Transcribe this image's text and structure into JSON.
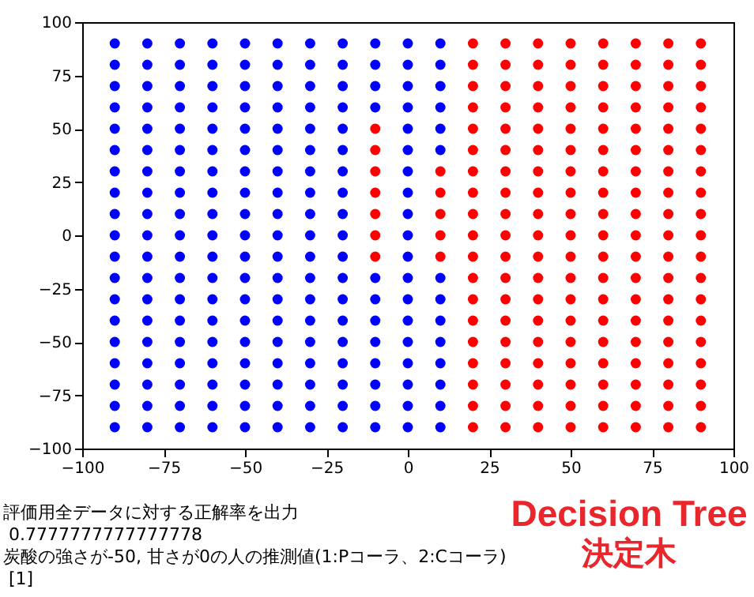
{
  "chart_data": {
    "type": "scatter",
    "xlim": [
      -100,
      100
    ],
    "ylim": [
      -100,
      100
    ],
    "xticks": [
      -100,
      -75,
      -50,
      -25,
      0,
      25,
      50,
      75,
      100
    ],
    "yticks": [
      -100,
      -75,
      -50,
      -25,
      0,
      25,
      50,
      75,
      100
    ],
    "marker": "circle",
    "annotations": [
      "評価用全データに対する正解率を出力",
      " 0.7777777777777778",
      "炭酸の強さが-50, 甘さが0の人の推測値(1:Pコーラ、2:Cコーラ)",
      " [1]",
      "Decision Tree",
      "決定木"
    ],
    "series": [
      {
        "color": "#0000ff",
        "x": [
          -90,
          -90,
          -90,
          -90,
          -90,
          -90,
          -90,
          -90,
          -90,
          -90,
          -90,
          -90,
          -90,
          -90,
          -90,
          -90,
          -90,
          -90,
          -90,
          -80,
          -80,
          -80,
          -80,
          -80,
          -80,
          -80,
          -80,
          -80,
          -80,
          -80,
          -80,
          -80,
          -80,
          -80,
          -80,
          -80,
          -80,
          -80,
          -70,
          -70,
          -70,
          -70,
          -70,
          -70,
          -70,
          -70,
          -70,
          -70,
          -70,
          -70,
          -70,
          -70,
          -70,
          -70,
          -70,
          -70,
          -70,
          -60,
          -60,
          -60,
          -60,
          -60,
          -60,
          -60,
          -60,
          -60,
          -60,
          -60,
          -60,
          -60,
          -60,
          -60,
          -60,
          -60,
          -60,
          -60,
          -50,
          -50,
          -50,
          -50,
          -50,
          -50,
          -50,
          -50,
          -50,
          -50,
          -50,
          -50,
          -50,
          -50,
          -50,
          -50,
          -50,
          -50,
          -50,
          -40,
          -40,
          -40,
          -40,
          -40,
          -40,
          -40,
          -40,
          -40,
          -40,
          -40,
          -40,
          -40,
          -40,
          -40,
          -40,
          -40,
          -40,
          -40,
          -30,
          -30,
          -30,
          -30,
          -30,
          -30,
          -30,
          -30,
          -30,
          -30,
          -30,
          -30,
          -30,
          -30,
          -30,
          -30,
          -30,
          -30,
          -30,
          -20,
          -20,
          -20,
          -20,
          -20,
          -20,
          -20,
          -20,
          -20,
          -20,
          -20,
          -20,
          -20,
          -20,
          -20,
          -20,
          -20,
          -20,
          -20,
          -10,
          -10,
          -10,
          -10,
          -10,
          -10,
          -10,
          -10,
          -10,
          -10,
          -10,
          -10,
          0,
          0,
          0,
          0,
          0,
          0,
          0,
          0,
          0,
          0,
          0,
          0,
          0,
          0,
          0,
          0,
          0,
          0,
          0,
          10,
          10,
          10,
          10,
          10,
          10,
          10,
          10,
          10,
          10,
          10,
          10,
          10,
          10
        ],
        "values": [
          -90,
          -80,
          -70,
          -60,
          -50,
          -40,
          -30,
          -20,
          -10,
          0,
          10,
          20,
          30,
          40,
          50,
          60,
          70,
          80,
          90,
          -90,
          -80,
          -70,
          -60,
          -50,
          -40,
          -30,
          -20,
          -10,
          0,
          10,
          20,
          30,
          40,
          50,
          60,
          70,
          80,
          90,
          -90,
          -80,
          -70,
          -60,
          -50,
          -40,
          -30,
          -20,
          -10,
          0,
          10,
          20,
          30,
          40,
          50,
          60,
          70,
          80,
          90,
          -90,
          -80,
          -70,
          -60,
          -50,
          -40,
          -30,
          -20,
          -10,
          0,
          10,
          20,
          30,
          40,
          50,
          60,
          70,
          80,
          90,
          -90,
          -80,
          -70,
          -60,
          -50,
          -40,
          -30,
          -20,
          -10,
          0,
          10,
          20,
          30,
          40,
          50,
          60,
          70,
          80,
          90,
          -90,
          -80,
          -70,
          -60,
          -50,
          -40,
          -30,
          -20,
          -10,
          0,
          10,
          20,
          30,
          40,
          50,
          60,
          70,
          80,
          90,
          -90,
          -80,
          -70,
          -60,
          -50,
          -40,
          -30,
          -20,
          -10,
          0,
          10,
          20,
          30,
          40,
          50,
          60,
          70,
          80,
          90,
          -90,
          -80,
          -70,
          -60,
          -50,
          -40,
          -30,
          -20,
          -10,
          0,
          10,
          20,
          30,
          40,
          50,
          60,
          70,
          80,
          90,
          -90,
          -80,
          -70,
          -60,
          -50,
          -40,
          -30,
          -20,
          60,
          70,
          80,
          90,
          -90,
          -80,
          -70,
          -60,
          -50,
          -40,
          -30,
          -20,
          -10,
          0,
          10,
          20,
          30,
          40,
          50,
          60,
          70,
          80,
          90,
          -90,
          -80,
          -70,
          -60,
          -50,
          -40,
          -30,
          -20,
          40,
          50,
          60,
          70,
          80,
          90
        ]
      },
      {
        "color": "#ff0000",
        "x": [
          -10,
          -10,
          -10,
          -10,
          -10,
          -10,
          -10,
          10,
          10,
          10,
          10,
          10,
          20,
          20,
          20,
          20,
          20,
          20,
          20,
          20,
          20,
          20,
          20,
          20,
          20,
          20,
          20,
          20,
          20,
          20,
          20,
          30,
          30,
          30,
          30,
          30,
          30,
          30,
          30,
          30,
          30,
          30,
          30,
          30,
          30,
          30,
          30,
          30,
          30,
          30,
          40,
          40,
          40,
          40,
          40,
          40,
          40,
          40,
          40,
          40,
          40,
          40,
          40,
          40,
          40,
          40,
          40,
          40,
          40,
          50,
          50,
          50,
          50,
          50,
          50,
          50,
          50,
          50,
          50,
          50,
          50,
          50,
          50,
          50,
          50,
          50,
          50,
          50,
          60,
          60,
          60,
          60,
          60,
          60,
          60,
          60,
          60,
          60,
          60,
          60,
          60,
          60,
          60,
          60,
          60,
          60,
          60,
          70,
          70,
          70,
          70,
          70,
          70,
          70,
          70,
          70,
          70,
          70,
          70,
          70,
          70,
          70,
          70,
          70,
          70,
          70,
          80,
          80,
          80,
          80,
          80,
          80,
          80,
          80,
          80,
          80,
          80,
          80,
          80,
          80,
          80,
          80,
          80,
          80,
          80,
          90,
          90,
          90,
          90,
          90,
          90,
          90,
          90,
          90,
          90,
          90,
          90,
          90,
          90,
          90,
          90,
          90,
          90,
          90
        ],
        "values": [
          -10,
          0,
          10,
          20,
          30,
          40,
          50,
          -10,
          0,
          10,
          20,
          30,
          -90,
          -80,
          -70,
          -60,
          -50,
          -40,
          -30,
          -20,
          -10,
          0,
          10,
          20,
          30,
          40,
          50,
          60,
          70,
          80,
          90,
          -90,
          -80,
          -70,
          -60,
          -50,
          -40,
          -30,
          -20,
          -10,
          0,
          10,
          20,
          30,
          40,
          50,
          60,
          70,
          80,
          90,
          -90,
          -80,
          -70,
          -60,
          -50,
          -40,
          -30,
          -20,
          -10,
          0,
          10,
          20,
          30,
          40,
          50,
          60,
          70,
          80,
          90,
          -90,
          -80,
          -70,
          -60,
          -50,
          -40,
          -30,
          -20,
          -10,
          0,
          10,
          20,
          30,
          40,
          50,
          60,
          70,
          80,
          90,
          -90,
          -80,
          -70,
          -60,
          -50,
          -40,
          -30,
          -20,
          -10,
          0,
          10,
          20,
          30,
          40,
          50,
          60,
          70,
          80,
          90,
          -90,
          -80,
          -70,
          -60,
          -50,
          -40,
          -30,
          -20,
          -10,
          0,
          10,
          20,
          30,
          40,
          50,
          60,
          70,
          80,
          90,
          -90,
          -80,
          -70,
          -60,
          -50,
          -40,
          -30,
          -20,
          -10,
          0,
          10,
          20,
          30,
          40,
          50,
          60,
          70,
          80,
          90,
          -90,
          -80,
          -70,
          -60,
          -50,
          -40,
          -30,
          -20,
          -10,
          0,
          10,
          20,
          30,
          40,
          50,
          60,
          70,
          80,
          90
        ]
      }
    ]
  }
}
